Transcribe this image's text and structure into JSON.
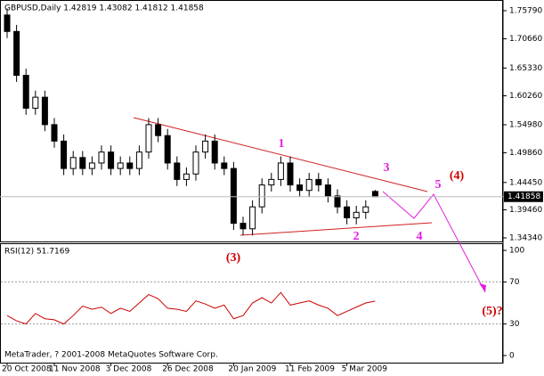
{
  "chart_data": [
    {
      "type": "candlestick",
      "title": "GBPUSD,Daily  1.42819 1.43082 1.41812 1.41858",
      "categories": [
        "20 Oct 2008",
        null,
        null,
        null,
        null,
        "11 Nov 2008",
        null,
        null,
        null,
        null,
        null,
        "3 Dec 2008",
        null,
        null,
        null,
        null,
        null,
        "26 Dec 2008",
        null,
        null,
        null,
        null,
        null,
        null,
        "20 Jan 2009",
        null,
        null,
        null,
        null,
        null,
        "11 Feb 2009",
        null,
        null,
        null,
        null,
        null,
        "5 Mar 2009",
        null,
        null,
        null
      ],
      "open": [
        1.75,
        1.72,
        1.64,
        1.58,
        1.6,
        1.55,
        1.52,
        1.47,
        1.49,
        1.47,
        1.48,
        1.5,
        1.47,
        1.48,
        1.47,
        1.5,
        1.55,
        1.53,
        1.48,
        1.45,
        1.46,
        1.5,
        1.52,
        1.48,
        1.47,
        1.37,
        1.36,
        1.4,
        1.44,
        1.45,
        1.48,
        1.44,
        1.43,
        1.45,
        1.44,
        1.42,
        1.4,
        1.38,
        1.39,
        1.42819
      ],
      "high": [
        1.762,
        1.732,
        1.652,
        1.612,
        1.612,
        1.562,
        1.532,
        1.502,
        1.502,
        1.492,
        1.512,
        1.512,
        1.492,
        1.492,
        1.512,
        1.562,
        1.562,
        1.542,
        1.492,
        1.472,
        1.512,
        1.532,
        1.532,
        1.492,
        1.482,
        1.382,
        1.412,
        1.452,
        1.462,
        1.492,
        1.492,
        1.452,
        1.462,
        1.462,
        1.452,
        1.432,
        1.412,
        1.402,
        1.412,
        1.43082
      ],
      "low": [
        1.708,
        1.628,
        1.568,
        1.568,
        1.538,
        1.508,
        1.458,
        1.458,
        1.458,
        1.458,
        1.468,
        1.458,
        1.458,
        1.458,
        1.458,
        1.488,
        1.518,
        1.468,
        1.438,
        1.438,
        1.448,
        1.488,
        1.468,
        1.458,
        1.358,
        1.348,
        1.348,
        1.388,
        1.428,
        1.438,
        1.428,
        1.418,
        1.418,
        1.428,
        1.408,
        1.388,
        1.368,
        1.368,
        1.378,
        1.41812
      ],
      "close": [
        1.72,
        1.64,
        1.58,
        1.6,
        1.55,
        1.52,
        1.47,
        1.49,
        1.47,
        1.48,
        1.5,
        1.47,
        1.48,
        1.47,
        1.5,
        1.55,
        1.53,
        1.48,
        1.45,
        1.46,
        1.5,
        1.52,
        1.48,
        1.47,
        1.37,
        1.36,
        1.4,
        1.44,
        1.45,
        1.48,
        1.44,
        1.43,
        1.45,
        1.44,
        1.42,
        1.4,
        1.38,
        1.39,
        1.4,
        1.41858
      ],
      "ylim": [
        1.3385,
        1.7774
      ],
      "yticks": [
        {
          "value": 1.7579,
          "label": "1.75790"
        },
        {
          "value": 1.7066,
          "label": "1.70660"
        },
        {
          "value": 1.6533,
          "label": "1.65330"
        },
        {
          "value": 1.6026,
          "label": "1.60260"
        },
        {
          "value": 1.5498,
          "label": "1.54980"
        },
        {
          "value": 1.4986,
          "label": "1.49860"
        },
        {
          "value": 1.4445,
          "label": "1.44450"
        },
        {
          "value": 1.3946,
          "label": "1.39460"
        },
        {
          "value": 1.3434,
          "label": "1.34340"
        }
      ],
      "annotations": [
        {
          "text": "1",
          "color": "#e020e0"
        },
        {
          "text": "2",
          "color": "#e020e0"
        },
        {
          "text": "3",
          "color": "#e020e0"
        },
        {
          "text": "4",
          "color": "#e020e0"
        },
        {
          "text": "5",
          "color": "#e020e0"
        },
        {
          "text": "(3)",
          "color": "#cc0000"
        },
        {
          "text": "(4)",
          "color": "#cc0000"
        },
        {
          "text": "(5)?",
          "color": "#cc0000"
        }
      ]
    },
    {
      "type": "line",
      "title": "RSI(12) 51.7169",
      "color": "#cc0000",
      "values": [
        38,
        33,
        30,
        40,
        35,
        34,
        30,
        38,
        47,
        44,
        46,
        40,
        45,
        42,
        50,
        58,
        54,
        45,
        44,
        42,
        52,
        49,
        45,
        48,
        35,
        38,
        50,
        55,
        50,
        60,
        48,
        50,
        52,
        48,
        45,
        38,
        42,
        46,
        50,
        51.7169
      ],
      "ylim": [
        -7.6,
        106.8
      ],
      "yticks": [
        100,
        70,
        30,
        0
      ],
      "footer": "MetaTrader, ? 2001-2008 MetaQuotes Software Corp."
    }
  ]
}
